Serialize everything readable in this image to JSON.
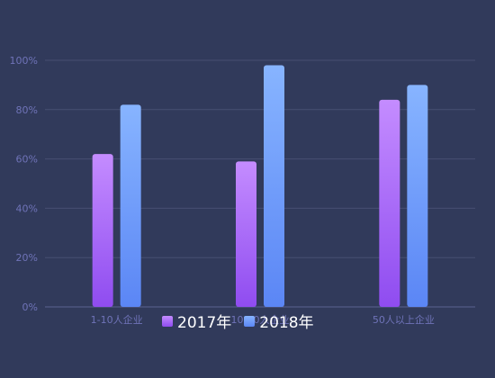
{
  "chart_data": {
    "type": "bar",
    "categories": [
      "1-10人企业",
      "10-50人企业",
      "50人以上企业"
    ],
    "series": [
      {
        "name": "2017年",
        "values": [
          62,
          59,
          84
        ],
        "color_top": "#c48cff",
        "color_bottom": "#8f4cf0"
      },
      {
        "name": "2018年",
        "values": [
          82,
          98,
          90
        ],
        "color_top": "#87b4ff",
        "color_bottom": "#5b86f5"
      }
    ],
    "y_ticks": [
      "0%",
      "20%",
      "40%",
      "60%",
      "80%",
      "100%"
    ],
    "ylim": [
      0,
      100
    ],
    "grid": true,
    "legend_placement": "bottom",
    "colors": {
      "background": "#313a5b",
      "axis_text": "#6f73b8",
      "grid": "#474f72",
      "legend_text": "#ffffff"
    }
  }
}
